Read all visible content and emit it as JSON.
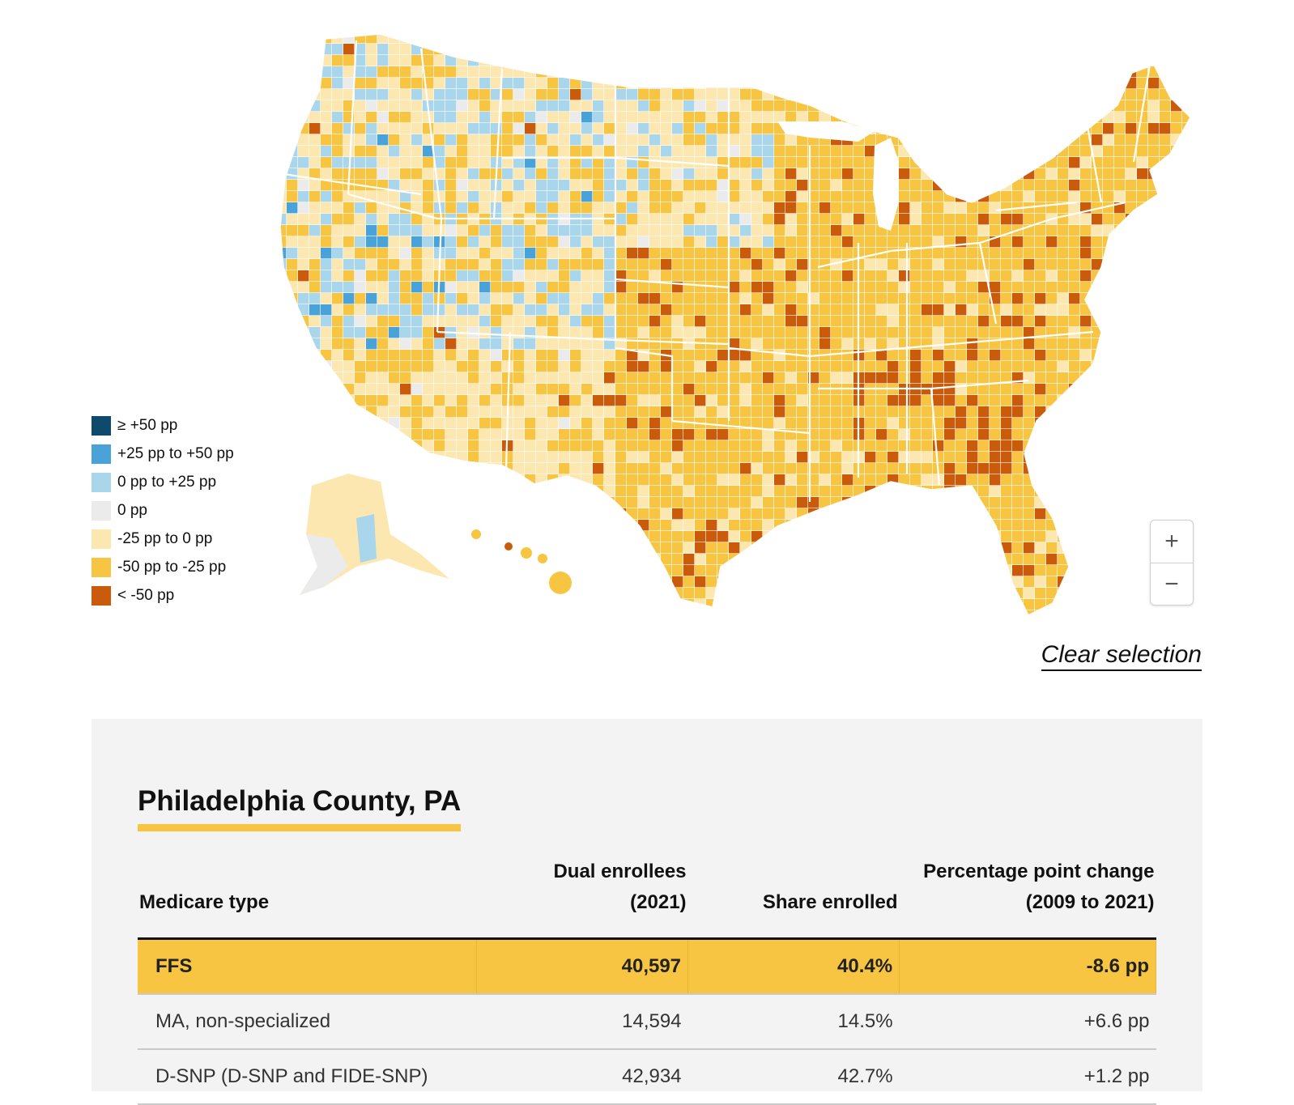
{
  "legend": {
    "colors": [
      "#0d4a6b",
      "#4aa3d8",
      "#a9d6ea",
      "#ebebeb",
      "#fde7b0",
      "#f7c541",
      "#c95b0a"
    ],
    "items": [
      {
        "label": "≥ +50 pp",
        "color": "#0d4a6b"
      },
      {
        "label": "+25 pp to +50 pp",
        "color": "#4aa3d8"
      },
      {
        "label": "0 pp to +25 pp",
        "color": "#a9d6ea"
      },
      {
        "label": "0 pp",
        "color": "#ebebeb"
      },
      {
        "label": "-25 pp to 0 pp",
        "color": "#fde7b0"
      },
      {
        "label": "-50 pp to -25 pp",
        "color": "#f7c541"
      },
      {
        "label": "< -50 pp",
        "color": "#c95b0a"
      }
    ]
  },
  "zoom": {
    "in_label": "+",
    "out_label": "−"
  },
  "clear_selection": "Clear selection",
  "panel": {
    "county": "Philadelphia County, PA",
    "headers": {
      "type": "Medicare type",
      "dual_line1": "Dual enrollees",
      "dual_line2": "(2021)",
      "share": "Share enrolled",
      "change_line1": "Percentage point change",
      "change_line2": "(2009 to 2021)"
    },
    "rows": [
      {
        "type": "FFS",
        "dual": "40,597",
        "share": "40.4%",
        "change": "-8.6 pp"
      },
      {
        "type": "MA, non-specialized",
        "dual": "14,594",
        "share": "14.5%",
        "change": "+6.6 pp"
      },
      {
        "type": "D-SNP (D-SNP and FIDE-SNP)",
        "dual": "42,934",
        "share": "42.7%",
        "change": "+1.2 pp"
      }
    ]
  }
}
